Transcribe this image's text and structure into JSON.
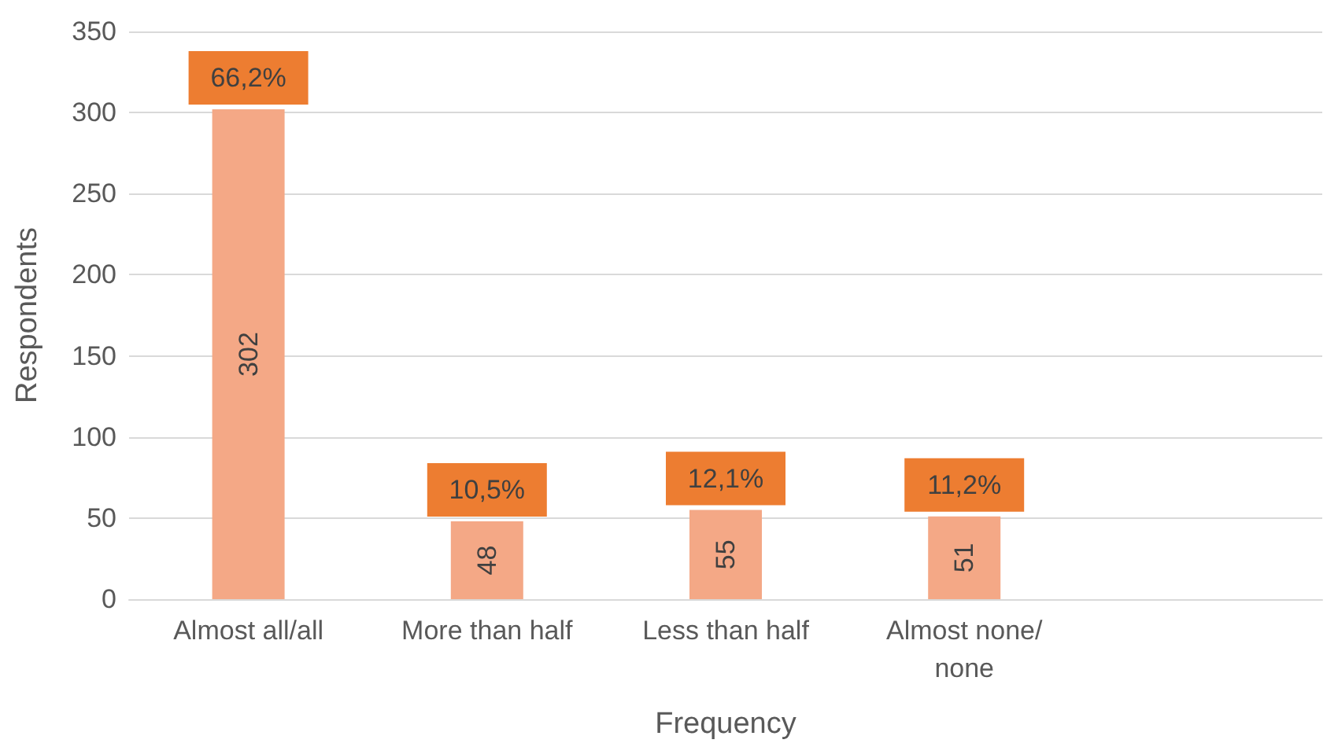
{
  "chart_data": {
    "type": "bar",
    "xlabel": "Frequency",
    "ylabel": "Respondents",
    "categories": [
      "Almost all/all",
      "More than half",
      "Less than half",
      "Almost none/none",
      null
    ],
    "values": [
      302,
      48,
      55,
      51,
      null
    ],
    "color": "#f4a886",
    "ylim": [
      0,
      350
    ],
    "yticks": [
      0,
      50,
      100,
      150,
      200,
      250,
      300,
      350
    ],
    "grid": "y",
    "data_labels": true,
    "annotations": [
      {
        "text": "66,2%",
        "x": "Almost all/all",
        "y": 302
      },
      {
        "text": "10,5%",
        "x": "More than half",
        "y": 48
      },
      {
        "text": "12,1%",
        "x": "Less than half",
        "y": 55
      },
      {
        "text": "11,2%",
        "x": "Almost none/none",
        "y": 51
      }
    ]
  }
}
